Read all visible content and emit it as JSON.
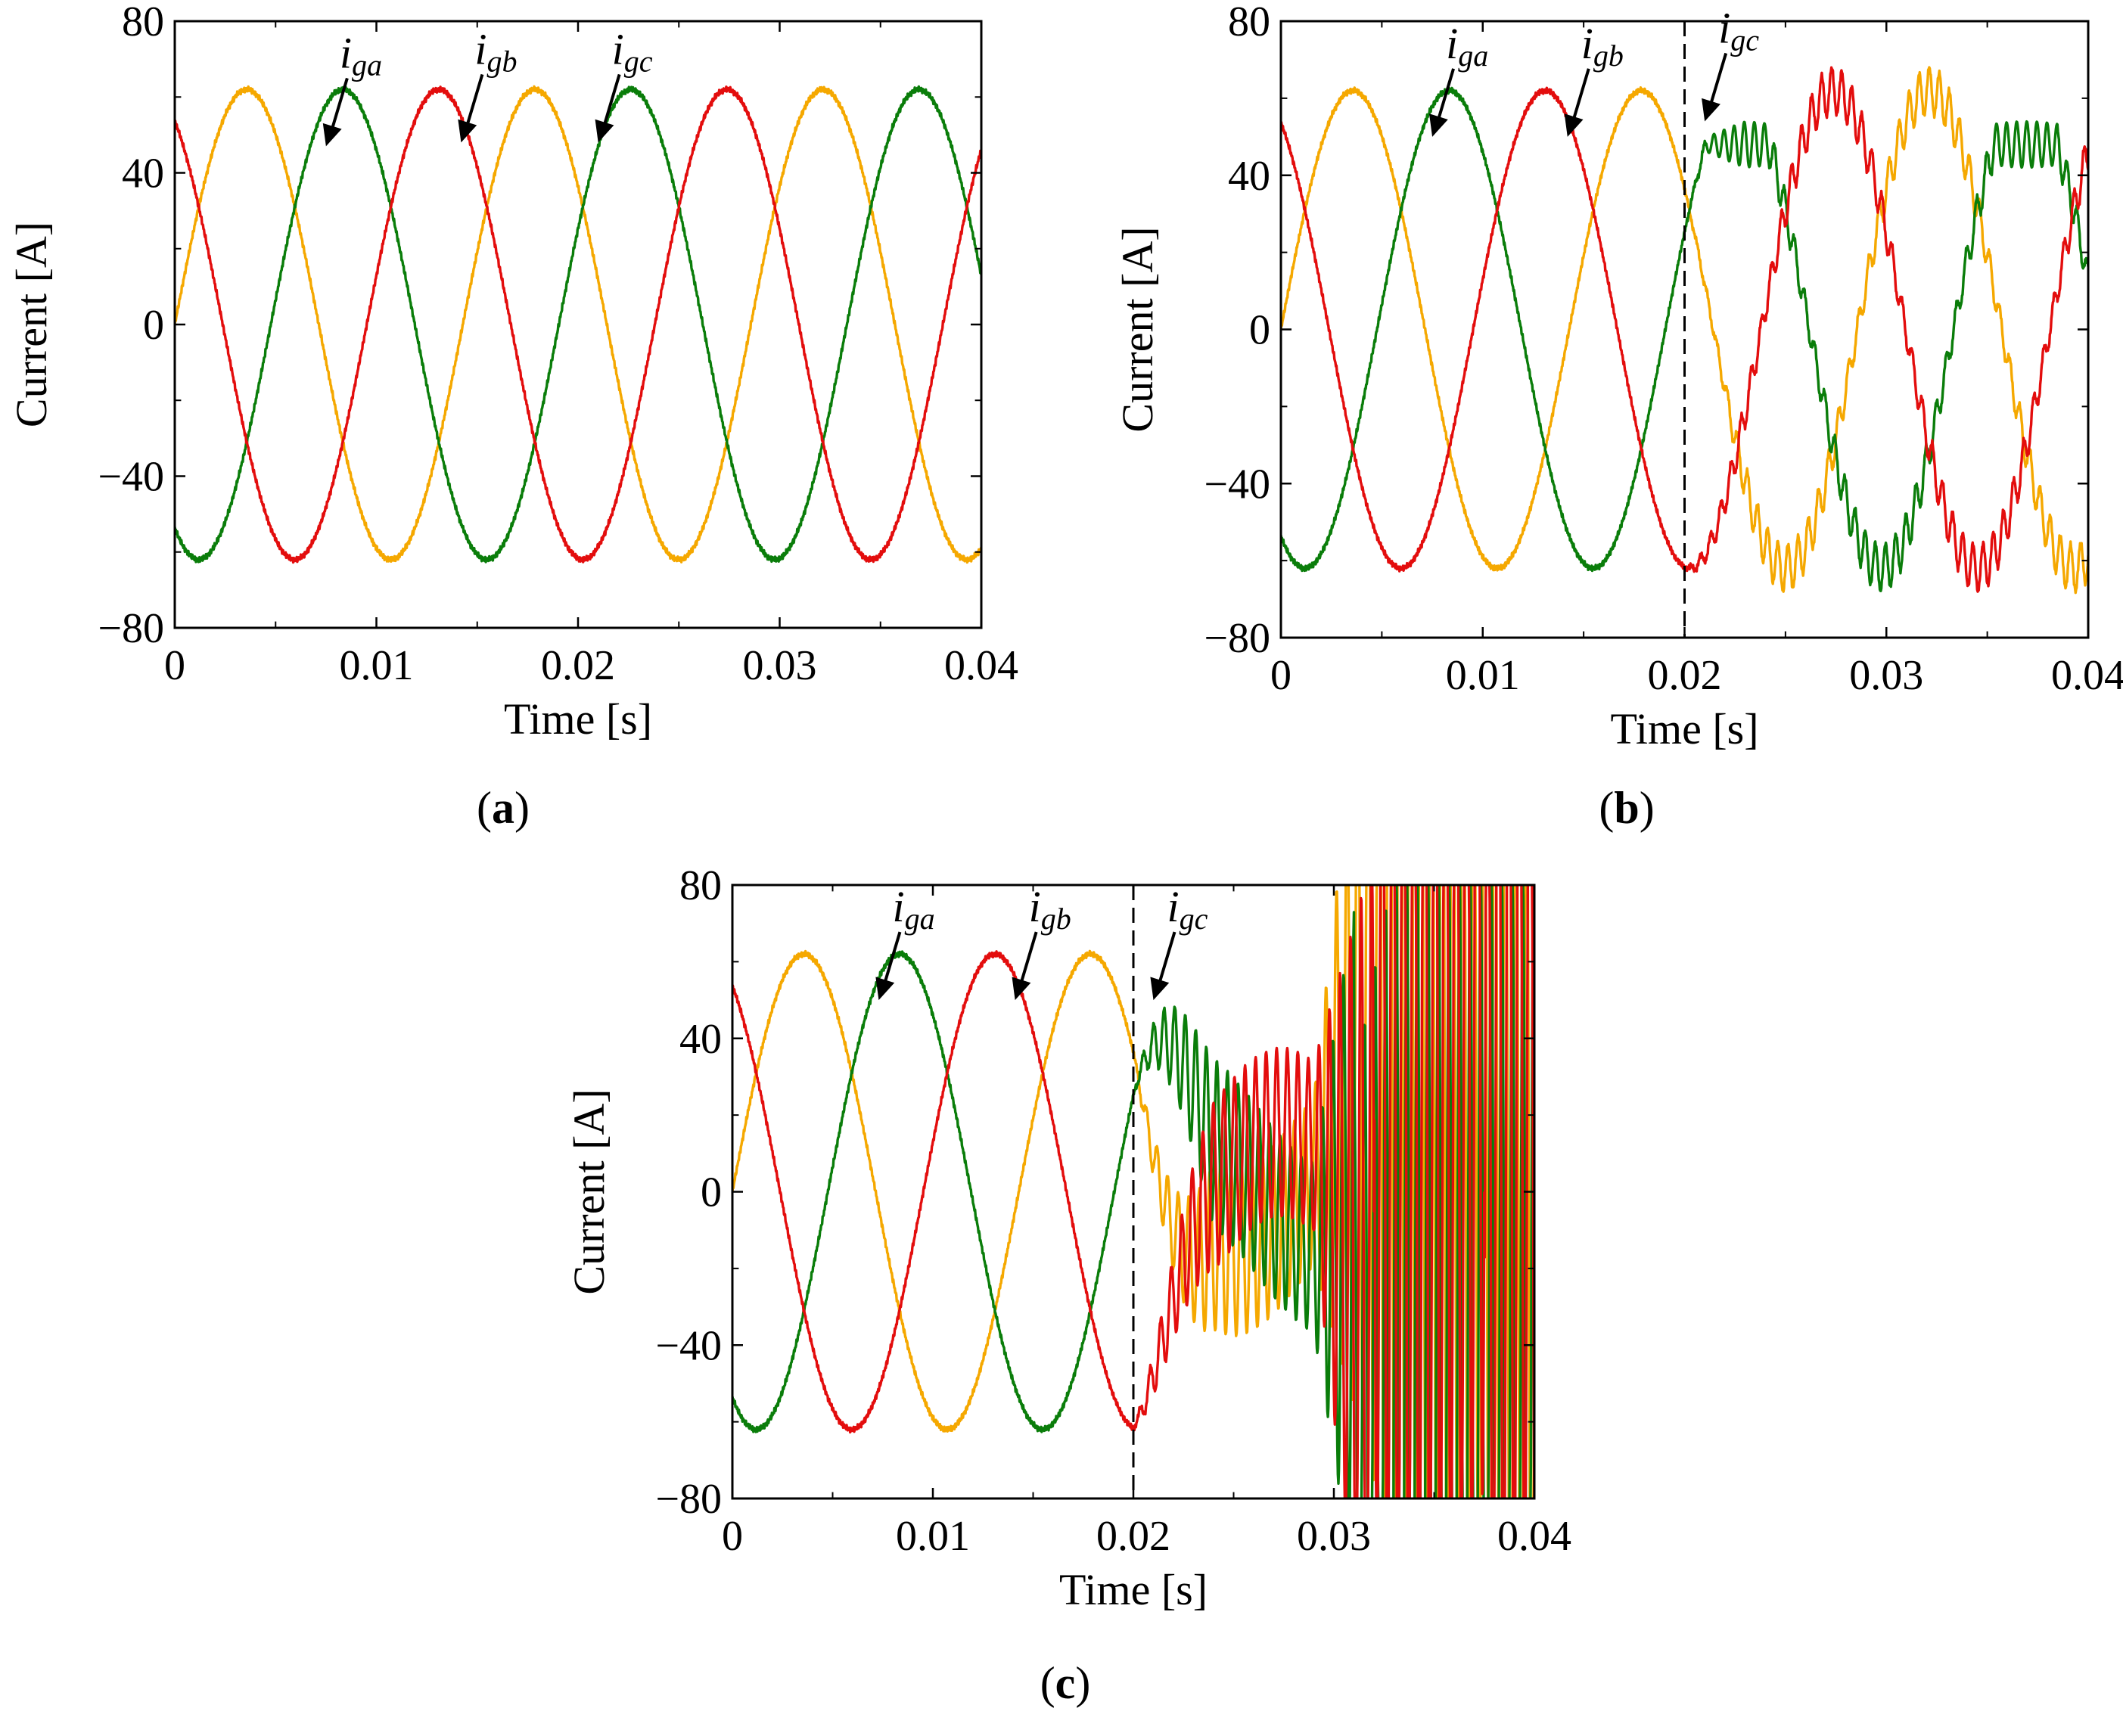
{
  "figure": {
    "colors": {
      "ia": "#f5a800",
      "ib": "#0a7d0a",
      "ic": "#e30d0d",
      "axis": "#000000"
    },
    "series_names": [
      "iga",
      "igb",
      "igc"
    ]
  },
  "chart_data": [
    {
      "type": "line",
      "panel": "a",
      "panel_label_open": "(",
      "panel_label_letter": "a",
      "panel_label_close": ")",
      "xlabel": "Time [s]",
      "ylabel": "Current [A]",
      "xlim": [
        0,
        0.04
      ],
      "ylim": [
        -80,
        80
      ],
      "xticks": [
        0,
        0.01,
        0.02,
        0.03,
        0.04
      ],
      "xtick_labels": [
        "0",
        "0.01",
        "0.02",
        "0.03",
        "0.04"
      ],
      "yticks": [
        -80,
        -40,
        0,
        40,
        80
      ],
      "ytick_labels": [
        "−80",
        "−40",
        "0",
        "40",
        "80"
      ],
      "fault_time": null,
      "amplitude": 62,
      "frequency_hz": 70,
      "phase_a_start_deg": 0,
      "series": [
        {
          "name": "iga",
          "base": "i",
          "sub1": "g",
          "sub2": "a",
          "color": "#f5a800",
          "phase_deg": 0,
          "arrow_to": [
            0.0075,
            47
          ]
        },
        {
          "name": "igb",
          "base": "i",
          "sub1": "g",
          "sub2": "b",
          "color": "#0a7d0a",
          "phase_deg": -120,
          "arrow_to": [
            0.0142,
            48
          ]
        },
        {
          "name": "igc",
          "base": "i",
          "sub1": "g",
          "sub2": "c",
          "color": "#e30d0d",
          "phase_deg": 120,
          "arrow_to": [
            0.021,
            48
          ]
        }
      ]
    },
    {
      "type": "line",
      "panel": "b",
      "panel_label_open": "(",
      "panel_label_letter": "b",
      "panel_label_close": ")",
      "xlabel": "Time [s]",
      "ylabel": "Current [A]",
      "xlim": [
        0,
        0.04
      ],
      "ylim": [
        -80,
        80
      ],
      "xticks": [
        0,
        0.01,
        0.02,
        0.03,
        0.04
      ],
      "xtick_labels": [
        "0",
        "0.01",
        "0.02",
        "0.03",
        "0.04"
      ],
      "yticks": [
        -80,
        -40,
        0,
        40,
        80
      ],
      "ytick_labels": [
        "−80",
        "−40",
        "0",
        "40",
        "80"
      ],
      "fault_time": 0.02,
      "amplitude": 62,
      "frequency_hz": 70,
      "post_fault": {
        "mode": "distorted",
        "flatten": 48,
        "ripple_amp": 6,
        "ripple_hz": 2000
      },
      "series": [
        {
          "name": "iga",
          "base": "i",
          "sub1": "g",
          "sub2": "a",
          "color": "#f5a800",
          "phase_deg": 0,
          "arrow_to": [
            0.0075,
            50
          ]
        },
        {
          "name": "igb",
          "base": "i",
          "sub1": "g",
          "sub2": "b",
          "color": "#0a7d0a",
          "phase_deg": -120,
          "arrow_to": [
            0.0142,
            50
          ]
        },
        {
          "name": "igc",
          "base": "i",
          "sub1": "g",
          "sub2": "c",
          "color": "#e30d0d",
          "phase_deg": 120,
          "arrow_to": [
            0.021,
            54
          ]
        }
      ]
    },
    {
      "type": "line",
      "panel": "c",
      "panel_label_open": "(",
      "panel_label_letter": "c",
      "panel_label_close": ")",
      "xlabel": "Time [s]",
      "ylabel": "Current [A]",
      "xlim": [
        0,
        0.04
      ],
      "ylim": [
        -80,
        80
      ],
      "xticks": [
        0,
        0.01,
        0.02,
        0.03,
        0.04
      ],
      "xtick_labels": [
        "0",
        "0.01",
        "0.02",
        "0.03",
        "0.04"
      ],
      "yticks": [
        -80,
        -40,
        0,
        40,
        80
      ],
      "ytick_labels": [
        "−80",
        "−40",
        "0",
        "40",
        "80"
      ],
      "fault_time": 0.02,
      "amplitude": 62,
      "frequency_hz": 70,
      "post_fault": {
        "mode": "unstable",
        "ripple_amp": 22,
        "ripple_hz": 1900
      },
      "series": [
        {
          "name": "iga",
          "base": "i",
          "sub1": "g",
          "sub2": "a",
          "color": "#f5a800",
          "phase_deg": 0,
          "arrow_to": [
            0.0073,
            50
          ]
        },
        {
          "name": "igb",
          "base": "i",
          "sub1": "g",
          "sub2": "b",
          "color": "#0a7d0a",
          "phase_deg": -120,
          "arrow_to": [
            0.0141,
            50
          ]
        },
        {
          "name": "igc",
          "base": "i",
          "sub1": "g",
          "sub2": "c",
          "color": "#e30d0d",
          "phase_deg": 120,
          "arrow_to": [
            0.021,
            50
          ]
        }
      ]
    }
  ]
}
